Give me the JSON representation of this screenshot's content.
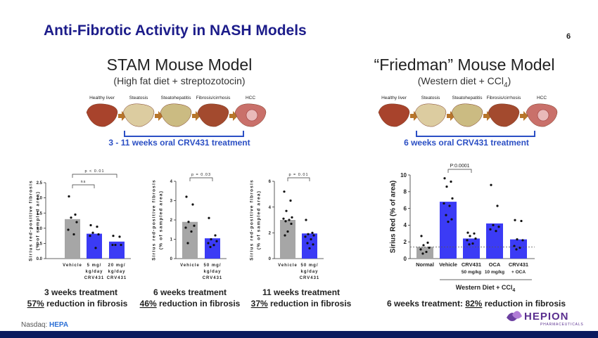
{
  "title": "Anti-Fibrotic Activity in NASH Models",
  "page_number": "6",
  "sections": [
    {
      "heading": "STAM Mouse Model",
      "subheading": [
        "(High fat diet + streptozotocin)"
      ],
      "stages": [
        "Healthy liver",
        "Steatosis",
        "Steatohepatitis",
        "Fibrosis/cirrhosis",
        "HCC"
      ],
      "treatment": "3 - 11 weeks oral CRV431 treatment"
    },
    {
      "heading": "“Friedman” Mouse Model",
      "subheading": [
        "(Western diet + CCl",
        "4",
        ")"
      ],
      "stages": [
        "Healthy liver",
        "Steatosis",
        "Steatohepatitis",
        "Fibrosis/cirrhosis",
        "HCC"
      ],
      "treatment": "6 weeks oral CRV431 treatment"
    }
  ],
  "chart_data": [
    {
      "type": "bar",
      "y_label": [
        "Sirius red-positive fibrosis",
        "(% of sampled area)"
      ],
      "categories": [
        [
          "Vehicle"
        ],
        [
          "5 mg/",
          "kg/day",
          "CRV431"
        ],
        [
          "20 mg/",
          "kg/day",
          "CRV431"
        ]
      ],
      "values": [
        1.3,
        0.82,
        0.56
      ],
      "colors": [
        "#a6a6a6",
        "#3b3bf5",
        "#3b3bf5"
      ],
      "points": [
        [
          2.05,
          1.45,
          1.35,
          1.2,
          0.95,
          0.8
        ],
        [
          1.1,
          1.05,
          0.85,
          0.8,
          0.75,
          0.35
        ],
        [
          0.75,
          0.72,
          0.45,
          0.45,
          0.45
        ]
      ],
      "ylim": [
        0,
        2.5
      ],
      "yticks": [
        {
          "value": 0,
          "label": "0.0"
        },
        0.5,
        {
          "value": 1,
          "label": "1.0"
        },
        1.5,
        {
          "value": 2,
          "label": "2.0"
        },
        2.5
      ],
      "annotations": [
        "p < 0.01",
        "ns"
      ]
    },
    {
      "type": "bar",
      "y_label": [
        "Sirius red-positive fibrosis",
        "(% of sampled area)"
      ],
      "categories": [
        [
          "Vehicle"
        ],
        [
          "50 mg/",
          "kg/day",
          "CRV431"
        ]
      ],
      "values": [
        1.9,
        1.05
      ],
      "colors": [
        "#a6a6a6",
        "#3b3bf5"
      ],
      "points": [
        [
          3.2,
          2.8,
          1.9,
          1.7,
          1.6,
          1.4,
          0.8
        ],
        [
          2.1,
          1.2,
          1.0,
          0.9,
          0.8,
          0.7,
          0.6
        ]
      ],
      "ylim": [
        0,
        4
      ],
      "yticks": [
        0,
        1,
        2,
        3,
        4
      ],
      "annotations": [
        "p = 0.03"
      ]
    },
    {
      "type": "bar",
      "y_label": [
        "Sirius red-positive fibrosis",
        "(% of sampled area)"
      ],
      "categories": [
        [
          "Vehicle"
        ],
        [
          "50 mg/",
          "kg/day",
          "CRV431"
        ]
      ],
      "values": [
        3.0,
        1.95
      ],
      "colors": [
        "#a6a6a6",
        "#3b3bf5"
      ],
      "points": [
        [
          5.2,
          4.5,
          3.7,
          3.2,
          3.1,
          3.0,
          2.9,
          2.7,
          2.1,
          1.8
        ],
        [
          3.0,
          2.0,
          1.9,
          1.8,
          1.7,
          1.5,
          1.2,
          1.1,
          0.8
        ]
      ],
      "ylim": [
        0,
        6
      ],
      "yticks": [
        0,
        2,
        4,
        6
      ],
      "annotations": [
        "p = 0.01"
      ]
    },
    {
      "type": "bar",
      "y_label": [
        "Sirius Red (% of area)"
      ],
      "categories": [
        [
          "Normal"
        ],
        [
          "Vehicle"
        ],
        [
          "CRV431",
          "50 mg/kg"
        ],
        [
          "OCA",
          "10 mg/kg"
        ],
        [
          "CRV431",
          "+ OCA"
        ]
      ],
      "values": [
        1.4,
        6.8,
        2.4,
        4.2,
        2.3
      ],
      "colors": [
        "#a6a6a6",
        "#3b3bf5",
        "#3b3bf5",
        "#3b3bf5",
        "#3b3bf5"
      ],
      "points": [
        [
          2.7,
          1.9,
          1.6,
          1.3,
          1.1,
          0.8,
          0.6
        ],
        [
          9.6,
          9.2,
          8.6,
          7.2,
          6.6,
          6.3,
          5.2,
          4.7,
          4.4
        ],
        [
          3.1,
          3.0,
          2.7,
          2.4,
          2.2,
          1.8,
          1.7
        ],
        [
          8.8,
          6.3,
          4.0,
          3.8,
          3.5,
          3.3
        ],
        [
          4.6,
          4.5,
          2.3,
          2.2,
          1.5,
          1.3,
          1.1
        ]
      ],
      "ylim": [
        0,
        10
      ],
      "yticks": [
        0,
        2,
        4,
        6,
        8,
        10
      ],
      "annotations": [
        "P:0.0001"
      ],
      "group_label": [
        "Western Diet + CCl",
        "4"
      ]
    }
  ],
  "captions": [
    {
      "line1": "3 weeks treatment",
      "highlight": "57%",
      "rest": " reduction in fibrosis"
    },
    {
      "line1": "6 weeks treatment",
      "highlight": "46%",
      "rest": " reduction in fibrosis"
    },
    {
      "line1": "11 weeks treatment",
      "highlight": "37%",
      "rest": " reduction in fibrosis"
    },
    {
      "line1": "6 weeks treatment: ",
      "highlight": "82%",
      "rest": " reduction in fibrosis"
    }
  ],
  "footer": {
    "exchange": "Nasdaq: ",
    "ticker": "HEPA"
  },
  "logo": {
    "name": "HEPION",
    "tagline": "PHARMACEUTICALS"
  }
}
